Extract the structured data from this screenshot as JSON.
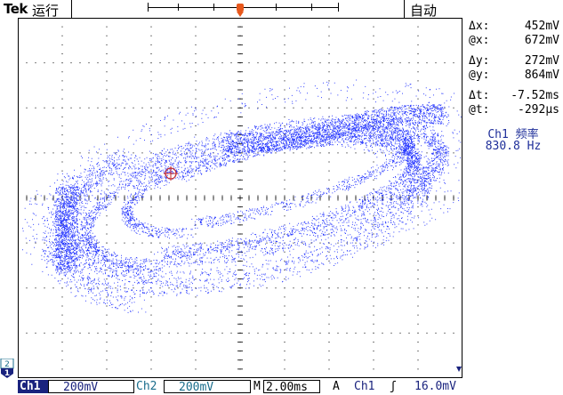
{
  "header": {
    "brand": "Tek",
    "run_state": "运行",
    "trigger_mode": "自动"
  },
  "readouts": [
    {
      "key": "Δx:",
      "value": "452mV"
    },
    {
      "key": "@x:",
      "value": "672mV"
    },
    {
      "key": "Δy:",
      "value": "272mV"
    },
    {
      "key": "@y:",
      "value": "864mV"
    },
    {
      "key": "Δt:",
      "value": "-7.52ms"
    },
    {
      "key": "@t:",
      "value": "-292µs"
    }
  ],
  "measurement": {
    "label": "Ch1 频率",
    "value": "830.8 Hz"
  },
  "footer": {
    "ch1_label": "Ch1",
    "ch1_scale": "200mV",
    "ch2_label": "Ch2",
    "ch2_scale": "200mV",
    "timebase_label": "M",
    "timebase": "2.00ms",
    "trigger_label": "A",
    "trigger_source": "Ch1",
    "trigger_slope": "ʃ",
    "trigger_level": "16.0mV"
  },
  "markers": {
    "trigger": "T",
    "ground": "2",
    "channel": "1"
  },
  "colors": {
    "trace": "#2233ff",
    "grid": "#000000",
    "ch1": "#1a237e",
    "ch2": "#1a6d8c",
    "trigger_marker": "#e8581c",
    "cursor": "#c62828"
  }
}
